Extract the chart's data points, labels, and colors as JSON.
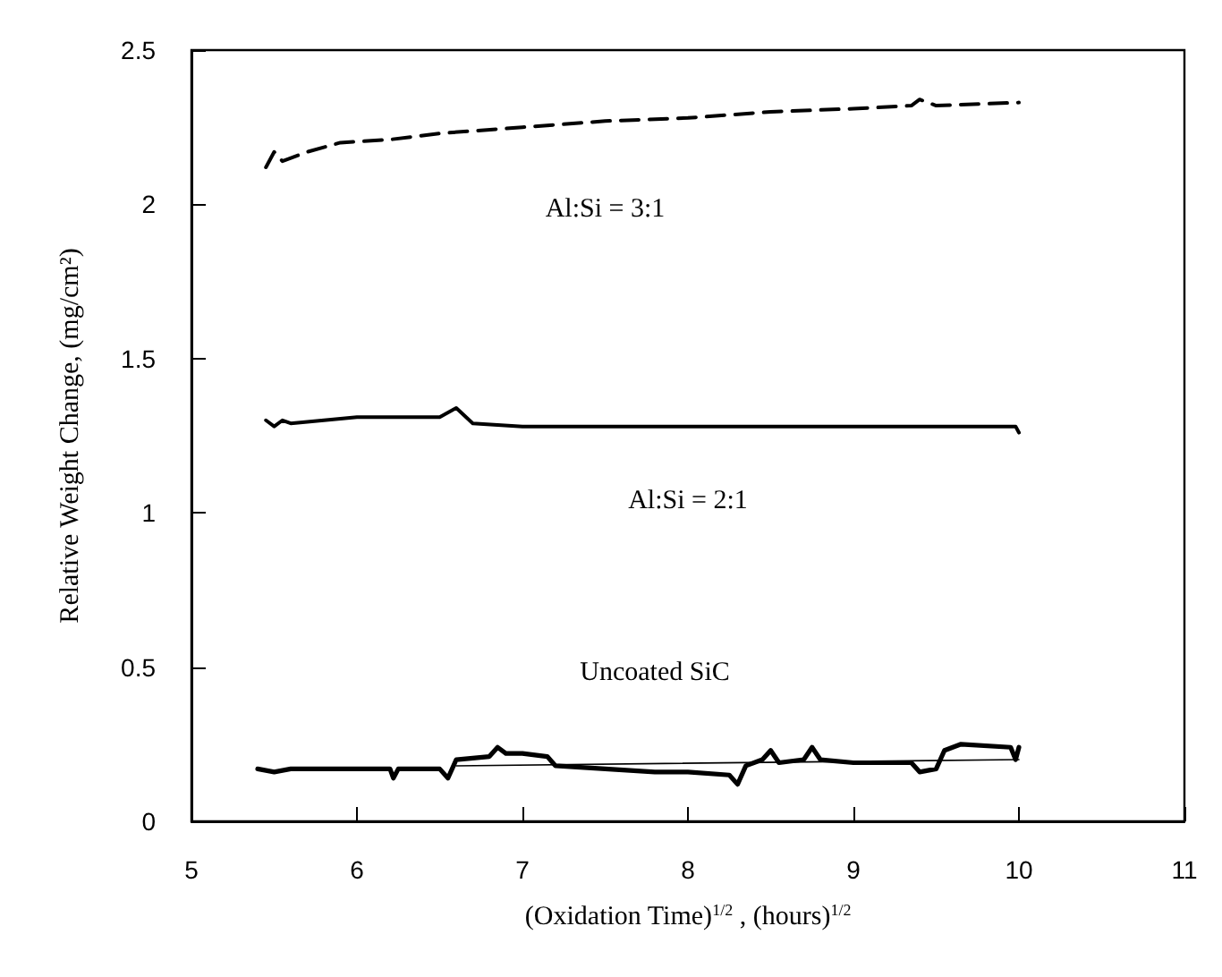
{
  "chart_data": {
    "type": "line",
    "xlabel": "(Oxidation Time)$^{1/2}$ , (hours)$^{1/2}$",
    "ylabel": "Relative Weight Change, (mg/cm²)",
    "xlim": [
      5,
      11
    ],
    "xticks": [
      5,
      6,
      7,
      8,
      9,
      10,
      11
    ],
    "ylim": [
      0,
      2.5
    ],
    "yticks": [
      0,
      0.5,
      1,
      1.5,
      2,
      2.5
    ],
    "grid": false,
    "marker": "none",
    "series": [
      {
        "name": "Al:Si = 3:1",
        "color": "#000000",
        "line_style": "dashed",
        "x": [
          5.45,
          5.5,
          5.55,
          5.7,
          5.9,
          6.2,
          6.5,
          7,
          7.5,
          8,
          8.5,
          9,
          9.35,
          9.4,
          9.5,
          10
        ],
        "values": [
          2.12,
          2.17,
          2.14,
          2.17,
          2.2,
          2.21,
          2.23,
          2.25,
          2.27,
          2.28,
          2.3,
          2.31,
          2.32,
          2.34,
          2.32,
          2.33
        ]
      },
      {
        "name": "Al:Si = 2:1",
        "color": "#000000",
        "line_style": "solid",
        "x": [
          5.45,
          5.5,
          5.55,
          5.6,
          6,
          6.2,
          6.5,
          6.6,
          6.7,
          7,
          8,
          9,
          9.98,
          10
        ],
        "values": [
          1.3,
          1.28,
          1.3,
          1.29,
          1.31,
          1.31,
          1.31,
          1.34,
          1.29,
          1.28,
          1.28,
          1.28,
          1.28,
          1.26
        ]
      },
      {
        "name": "Uncoated SiC",
        "color": "#000000",
        "line_style": "solid",
        "x": [
          5.4,
          5.5,
          5.6,
          6.2,
          6.22,
          6.25,
          6.5,
          6.55,
          6.6,
          6.8,
          6.85,
          6.9,
          7,
          7.15,
          7.2,
          7.5,
          7.8,
          8,
          8.25,
          8.3,
          8.35,
          8.45,
          8.5,
          8.55,
          8.7,
          8.75,
          8.8,
          9,
          9.2,
          9.35,
          9.4,
          9.5,
          9.55,
          9.65,
          9.95,
          9.98,
          10
        ],
        "values": [
          0.17,
          0.16,
          0.17,
          0.17,
          0.14,
          0.17,
          0.17,
          0.14,
          0.2,
          0.21,
          0.24,
          0.22,
          0.22,
          0.21,
          0.18,
          0.17,
          0.16,
          0.16,
          0.15,
          0.12,
          0.18,
          0.2,
          0.23,
          0.19,
          0.2,
          0.24,
          0.2,
          0.19,
          0.19,
          0.19,
          0.16,
          0.17,
          0.23,
          0.25,
          0.24,
          0.2,
          0.24
        ]
      },
      {
        "color": "#000000",
        "line_style": "solid",
        "x": [
          6.6,
          10
        ],
        "values": [
          0.18,
          0.2
        ]
      }
    ]
  }
}
